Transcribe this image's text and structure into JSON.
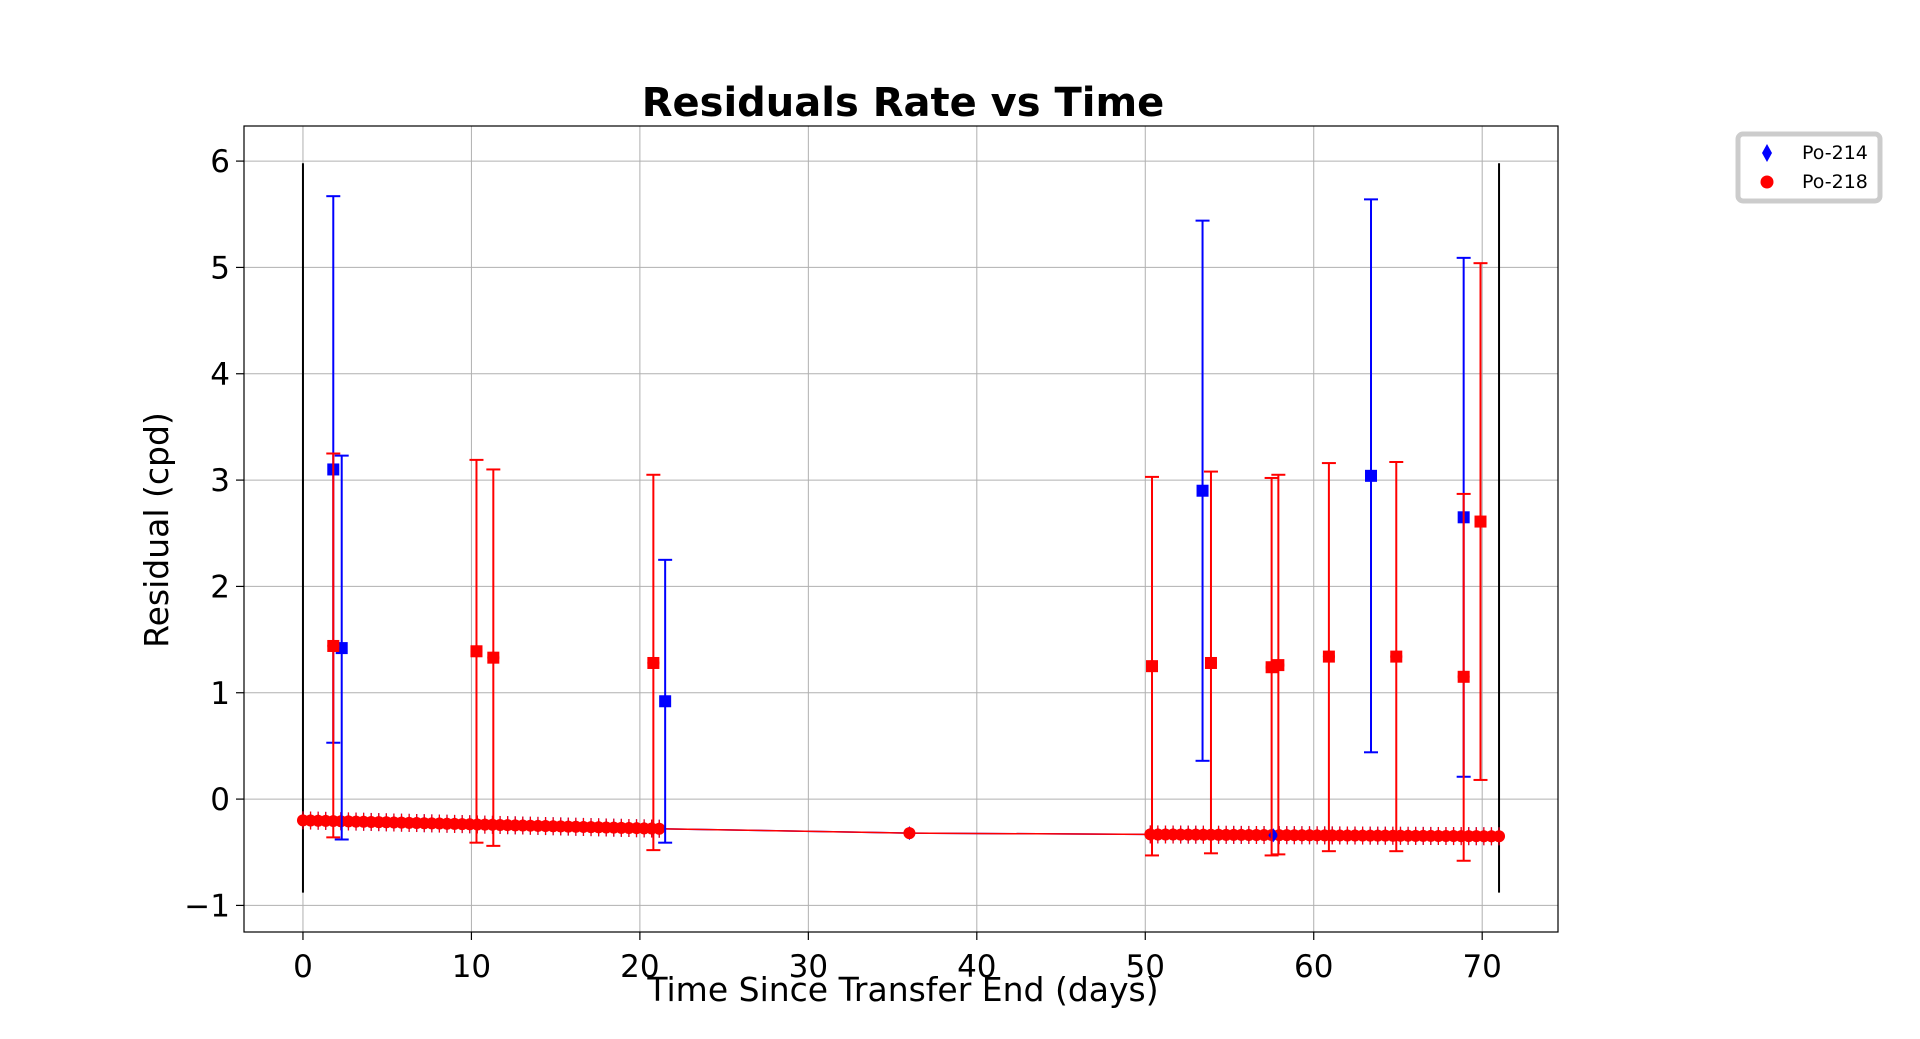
{
  "chart_data": {
    "type": "scatter",
    "title": "Residuals Rate vs Time",
    "xlabel": "Time Since Transfer End (days)",
    "ylabel": "Residual (cpd)",
    "xlim": [
      -3.5,
      74.5
    ],
    "ylim": [
      -1.25,
      6.33
    ],
    "xticks": [
      0,
      10,
      20,
      30,
      40,
      50,
      60,
      70
    ],
    "yticks": [
      -1,
      0,
      1,
      2,
      3,
      4,
      5,
      6
    ],
    "xtick_labels": [
      "0",
      "10",
      "20",
      "30",
      "40",
      "50",
      "60",
      "70"
    ],
    "ytick_labels": [
      "−1",
      "0",
      "1",
      "2",
      "3",
      "4",
      "5",
      "6"
    ],
    "grid": true,
    "legend": {
      "placement": "outside-top-right",
      "entries": [
        "Po-214",
        "Po-218"
      ]
    },
    "vlines": [
      {
        "x": 0,
        "y0": -0.88,
        "y1": 5.98,
        "color": "#000000"
      },
      {
        "x": 71,
        "y0": -0.88,
        "y1": 5.98,
        "color": "#000000"
      }
    ],
    "series": [
      {
        "name": "Po-214",
        "color": "#0000ff",
        "marker": "diamond",
        "baseline": {
          "x_start": 0,
          "x_end": 71,
          "points": [
            [
              0,
              -0.2
            ],
            [
              21.5,
              -0.28
            ],
            [
              36,
              -0.32
            ],
            [
              71,
              -0.35
            ]
          ],
          "step": 0.45
        },
        "points": [
          {
            "x": 1.8,
            "y": 3.1,
            "yerr_low": 2.57,
            "yerr_high": 2.57
          },
          {
            "x": 2.3,
            "y": 1.42,
            "yerr_low": 1.8,
            "yerr_high": 1.81
          },
          {
            "x": 21.5,
            "y": 0.92,
            "yerr_low": 1.33,
            "yerr_high": 1.33
          },
          {
            "x": 36.0,
            "y": -0.32,
            "yerr_low": 0.0,
            "yerr_high": 0.0
          },
          {
            "x": 53.4,
            "y": 2.9,
            "yerr_low": 2.54,
            "yerr_high": 2.54
          },
          {
            "x": 57.6,
            "y": -0.34,
            "yerr_low": 0.0,
            "yerr_high": 0.0
          },
          {
            "x": 63.4,
            "y": 3.04,
            "yerr_low": 2.6,
            "yerr_high": 2.6
          },
          {
            "x": 68.9,
            "y": 2.65,
            "yerr_low": 2.44,
            "yerr_high": 2.44
          }
        ]
      },
      {
        "name": "Po-218",
        "color": "#ff0000",
        "marker": "circle",
        "baseline": {
          "x_start": 0,
          "x_end": 71,
          "points": [
            [
              0,
              -0.2
            ],
            [
              21.5,
              -0.28
            ],
            [
              36,
              -0.32
            ],
            [
              71,
              -0.35
            ]
          ],
          "step": 0.45
        },
        "points": [
          {
            "x": 1.8,
            "y": 1.44,
            "yerr_low": 1.8,
            "yerr_high": 1.81
          },
          {
            "x": 10.3,
            "y": 1.39,
            "yerr_low": 1.8,
            "yerr_high": 1.8
          },
          {
            "x": 11.3,
            "y": 1.33,
            "yerr_low": 1.77,
            "yerr_high": 1.77
          },
          {
            "x": 20.8,
            "y": 1.28,
            "yerr_low": 1.76,
            "yerr_high": 1.77
          },
          {
            "x": 36.0,
            "y": -0.32,
            "yerr_low": 0.0,
            "yerr_high": 0.0
          },
          {
            "x": 50.4,
            "y": 1.25,
            "yerr_low": 1.78,
            "yerr_high": 1.78
          },
          {
            "x": 53.9,
            "y": 1.28,
            "yerr_low": 1.79,
            "yerr_high": 1.8
          },
          {
            "x": 57.5,
            "y": 1.24,
            "yerr_low": 1.77,
            "yerr_high": 1.78
          },
          {
            "x": 57.9,
            "y": 1.26,
            "yerr_low": 1.78,
            "yerr_high": 1.79
          },
          {
            "x": 60.9,
            "y": 1.34,
            "yerr_low": 1.83,
            "yerr_high": 1.82
          },
          {
            "x": 64.9,
            "y": 1.34,
            "yerr_low": 1.83,
            "yerr_high": 1.83
          },
          {
            "x": 68.9,
            "y": 1.15,
            "yerr_low": 1.73,
            "yerr_high": 1.72
          },
          {
            "x": 69.9,
            "y": 2.61,
            "yerr_low": 2.43,
            "yerr_high": 2.43
          }
        ]
      }
    ]
  }
}
